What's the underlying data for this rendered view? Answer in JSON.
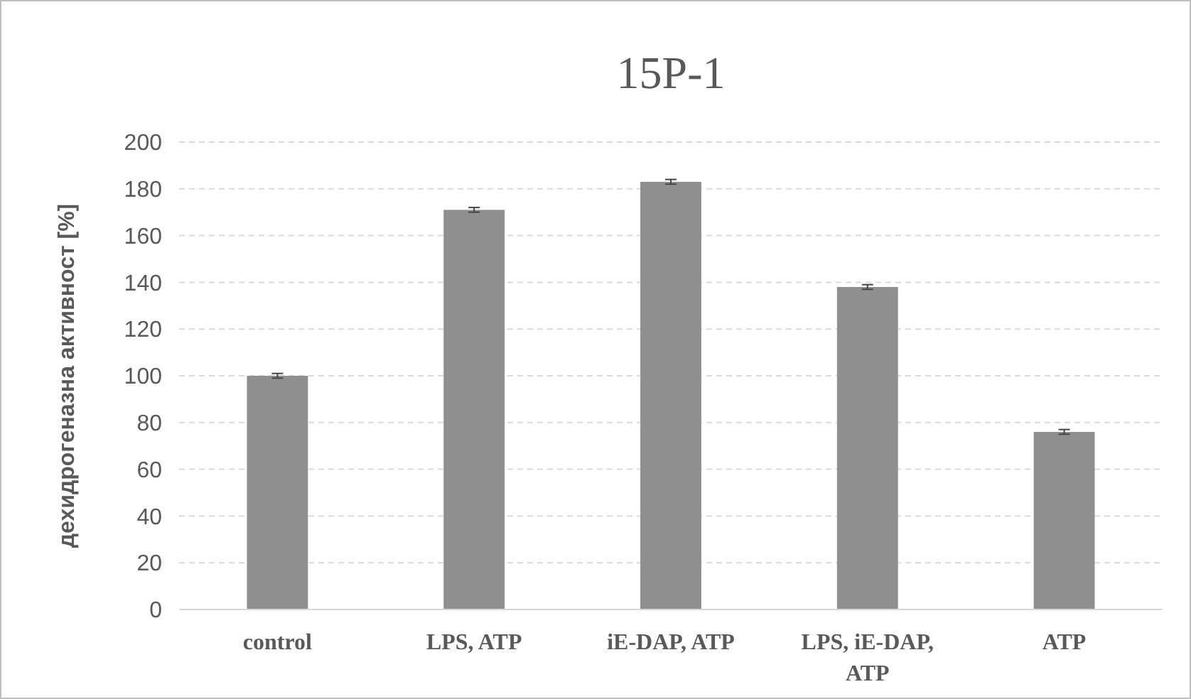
{
  "chart_data": {
    "type": "bar",
    "title": "15P-1",
    "ylabel": "дехидрогеназна активност [%]",
    "categories": [
      "control",
      "LPS, ATP",
      "iE-DAP, ATP",
      "LPS, iE-DAP, ATP",
      "ATP"
    ],
    "values": [
      100,
      171,
      183,
      138,
      76
    ],
    "errors": [
      1,
      1,
      1,
      1,
      1
    ],
    "color": "#8f8f8f",
    "ylim": [
      0,
      200
    ],
    "yticks": [
      0,
      20,
      40,
      60,
      80,
      100,
      120,
      140,
      160,
      180,
      200
    ],
    "grid": "y"
  }
}
